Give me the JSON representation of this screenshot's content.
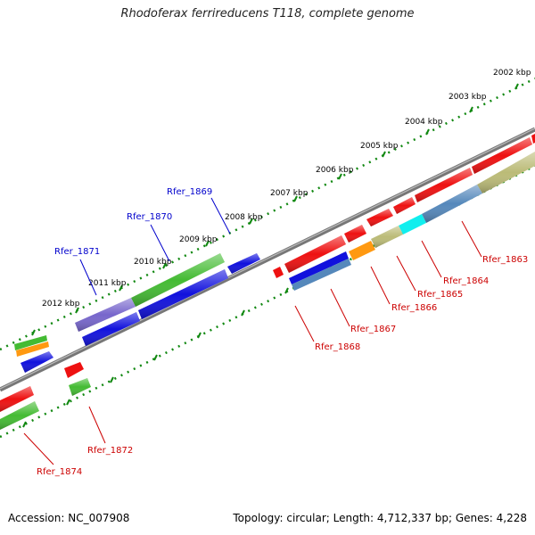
{
  "title": "Rhodoferax ferrireducens T118, complete genome",
  "footer": {
    "accession": "Accession: NC_007908",
    "summary": "Topology: circular; Length: 4,712,337 bp; Genes: 4,228"
  },
  "scale": {
    "ticks": [
      "2002 kbp",
      "2003 kbp",
      "2004 kbp",
      "2005 kbp",
      "2006 kbp",
      "2007 kbp",
      "2008 kbp",
      "2009 kbp",
      "2010 kbp",
      "2011 kbp",
      "2012 kbp"
    ]
  },
  "genes": {
    "forward": [
      "Rfer_1869",
      "Rfer_1870",
      "Rfer_1871"
    ],
    "reverse": [
      "Rfer_1863",
      "Rfer_1864",
      "Rfer_1865",
      "Rfer_1866",
      "Rfer_1867",
      "Rfer_1868",
      "Rfer_1872",
      "Rfer_1874"
    ]
  },
  "colors": {
    "forward_label": "#0000cc",
    "reverse_label": "#cc0000",
    "red": "#ee1111",
    "blue": "#1111dd",
    "green": "#44bb33",
    "purple": "#7766cc",
    "orange": "#ff9911",
    "cyan": "#11eeee",
    "steel": "#5588bb",
    "khaki": "#bbbb77",
    "backbone": "#888888",
    "tick": "#118811"
  }
}
